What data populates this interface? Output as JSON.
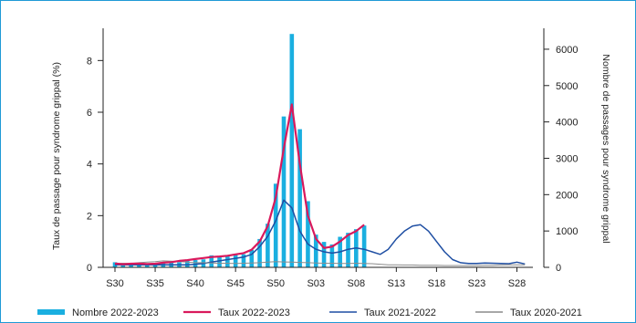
{
  "chart_data": {
    "type": "bar+line",
    "x_tick_labels": [
      "S30",
      "S35",
      "S40",
      "S45",
      "S50",
      "S03",
      "S08",
      "S13",
      "S18",
      "S23",
      "S28"
    ],
    "y_left_label": "Taux de passage pour syndrome grippal (%)",
    "y_right_label": "Nombre de passages pour syndrome grippal",
    "y_left_ticks": [
      "0",
      "2",
      "4",
      "6",
      "8"
    ],
    "y_right_ticks": [
      "0",
      "1000",
      "2000",
      "3000",
      "4000",
      "5000",
      "6000"
    ],
    "y_left_range": [
      0,
      9.0
    ],
    "y_right_range": [
      0,
      6400
    ],
    "weeks": [
      "S30",
      "S31",
      "S32",
      "S33",
      "S34",
      "S35",
      "S36",
      "S37",
      "S38",
      "S39",
      "S40",
      "S41",
      "S42",
      "S43",
      "S44",
      "S45",
      "S46",
      "S47",
      "S48",
      "S49",
      "S50",
      "S51",
      "S52",
      "S01",
      "S02",
      "S03",
      "S04",
      "S05",
      "S06",
      "S07",
      "S08",
      "S09",
      "S10",
      "S11",
      "S12",
      "S13",
      "S14",
      "S15",
      "S16",
      "S17",
      "S18",
      "S19",
      "S20",
      "S21",
      "S22",
      "S23",
      "S24",
      "S25",
      "S26",
      "S27",
      "S28",
      "S29"
    ],
    "series": [
      {
        "name": "Nombre 2022-2023",
        "kind": "bar",
        "axis": "right",
        "color": "#1aafe0",
        "values": [
          140,
          70,
          80,
          90,
          80,
          70,
          110,
          130,
          140,
          190,
          200,
          220,
          330,
          300,
          320,
          340,
          360,
          480,
          780,
          1200,
          2300,
          4150,
          6420,
          3800,
          1820,
          900,
          700,
          630,
          840,
          950,
          1050,
          1150
        ]
      },
      {
        "name": "Taux 2022-2023",
        "kind": "line",
        "axis": "left",
        "color": "#d9195c",
        "values": [
          0.15,
          0.12,
          0.14,
          0.15,
          0.13,
          0.14,
          0.18,
          0.2,
          0.25,
          0.28,
          0.32,
          0.36,
          0.4,
          0.42,
          0.45,
          0.5,
          0.55,
          0.68,
          1.0,
          1.6,
          2.7,
          4.6,
          6.3,
          4.0,
          2.0,
          1.1,
          0.75,
          0.8,
          1.0,
          1.25,
          1.4,
          1.65
        ]
      },
      {
        "name": "Taux 2021-2022",
        "kind": "line",
        "axis": "left",
        "color": "#1f4fa3",
        "values": [
          0.1,
          0.1,
          0.1,
          0.1,
          0.1,
          0.1,
          0.1,
          0.1,
          0.1,
          0.1,
          0.12,
          0.15,
          0.2,
          0.25,
          0.3,
          0.35,
          0.4,
          0.5,
          0.8,
          1.2,
          1.8,
          2.6,
          2.3,
          1.4,
          0.9,
          0.7,
          0.6,
          0.55,
          0.6,
          0.7,
          0.75,
          0.7,
          0.6,
          0.5,
          0.7,
          1.1,
          1.4,
          1.6,
          1.65,
          1.4,
          1.0,
          0.6,
          0.3,
          0.18,
          0.15,
          0.15,
          0.17,
          0.16,
          0.15,
          0.14,
          0.2,
          0.13
        ]
      },
      {
        "name": "Taux 2020-2021",
        "kind": "line",
        "axis": "left",
        "color": "#8c8c8c",
        "values": [
          0.15,
          0.16,
          0.15,
          0.18,
          0.2,
          0.22,
          0.25,
          0.24,
          0.22,
          0.2,
          0.18,
          0.18,
          0.17,
          0.16,
          0.16,
          0.15,
          0.16,
          0.17,
          0.18,
          0.2,
          0.22,
          0.21,
          0.2,
          0.19,
          0.18,
          0.17,
          0.16,
          0.16,
          0.15,
          0.15,
          0.16,
          0.15,
          0.14,
          0.12,
          0.1,
          0.1,
          0.09,
          0.09,
          0.08,
          0.08,
          0.08,
          0.07,
          0.07,
          0.07,
          0.07,
          0.07,
          0.08,
          0.08,
          0.09,
          0.1,
          0.1,
          0.1
        ]
      }
    ],
    "legend_position": "bottom"
  }
}
